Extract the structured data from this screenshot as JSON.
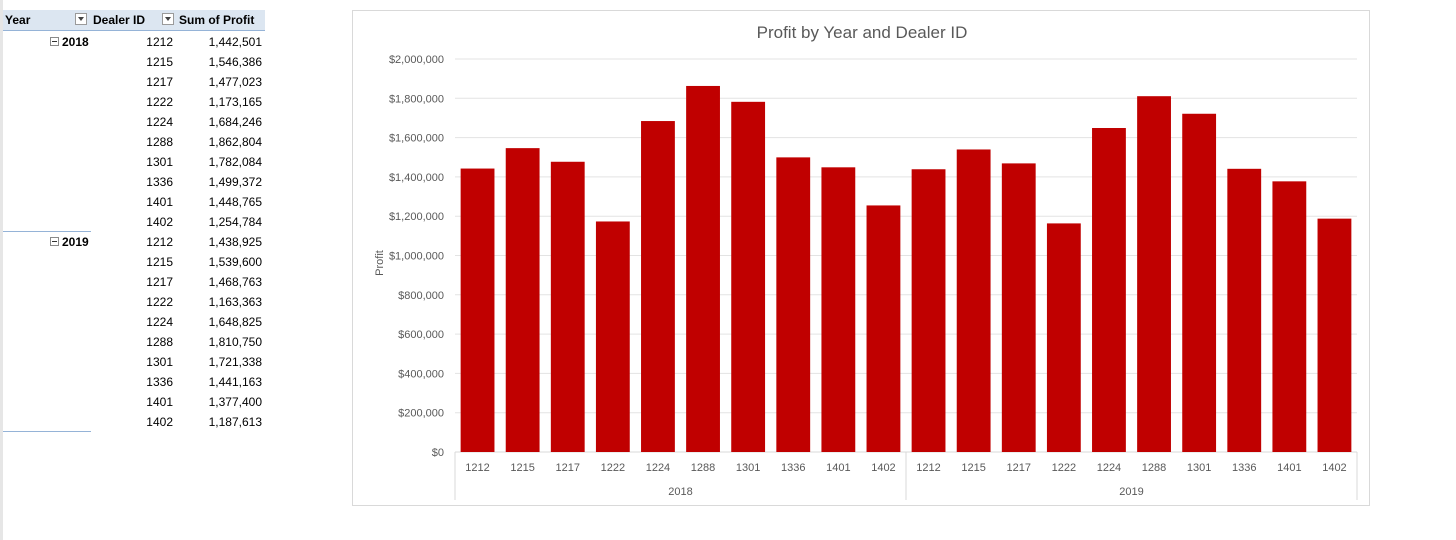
{
  "pivot": {
    "headers": {
      "year": "Year",
      "dealer_id": "Dealer ID",
      "sum_profit": "Sum of Profit"
    },
    "groups": [
      {
        "year": "2018",
        "rows": [
          {
            "dealer": "1212",
            "profit": "1,442,501"
          },
          {
            "dealer": "1215",
            "profit": "1,546,386"
          },
          {
            "dealer": "1217",
            "profit": "1,477,023"
          },
          {
            "dealer": "1222",
            "profit": "1,173,165"
          },
          {
            "dealer": "1224",
            "profit": "1,684,246"
          },
          {
            "dealer": "1288",
            "profit": "1,862,804"
          },
          {
            "dealer": "1301",
            "profit": "1,782,084"
          },
          {
            "dealer": "1336",
            "profit": "1,499,372"
          },
          {
            "dealer": "1401",
            "profit": "1,448,765"
          },
          {
            "dealer": "1402",
            "profit": "1,254,784"
          }
        ]
      },
      {
        "year": "2019",
        "rows": [
          {
            "dealer": "1212",
            "profit": "1,438,925"
          },
          {
            "dealer": "1215",
            "profit": "1,539,600"
          },
          {
            "dealer": "1217",
            "profit": "1,468,763"
          },
          {
            "dealer": "1222",
            "profit": "1,163,363"
          },
          {
            "dealer": "1224",
            "profit": "1,648,825"
          },
          {
            "dealer": "1288",
            "profit": "1,810,750"
          },
          {
            "dealer": "1301",
            "profit": "1,721,338"
          },
          {
            "dealer": "1336",
            "profit": "1,441,163"
          },
          {
            "dealer": "1401",
            "profit": "1,377,400"
          },
          {
            "dealer": "1402",
            "profit": "1,187,613"
          }
        ]
      }
    ]
  },
  "chart_data": {
    "type": "bar",
    "title": "Profit by Year and Dealer ID",
    "xlabel": "",
    "ylabel": "Profit",
    "ylim": [
      0,
      2000000
    ],
    "yticks": [
      "$0",
      "$200,000",
      "$400,000",
      "$600,000",
      "$800,000",
      "$1,000,000",
      "$1,200,000",
      "$1,400,000",
      "$1,600,000",
      "$1,800,000",
      "$2,000,000"
    ],
    "grid": true,
    "legend": "none",
    "bar_color": "#c00000",
    "groups": [
      {
        "name": "2018",
        "categories": [
          "1212",
          "1215",
          "1217",
          "1222",
          "1224",
          "1288",
          "1301",
          "1336",
          "1401",
          "1402"
        ],
        "values": [
          1442501,
          1546386,
          1477023,
          1173165,
          1684246,
          1862804,
          1782084,
          1499372,
          1448765,
          1254784
        ]
      },
      {
        "name": "2019",
        "categories": [
          "1212",
          "1215",
          "1217",
          "1222",
          "1224",
          "1288",
          "1301",
          "1336",
          "1401",
          "1402"
        ],
        "values": [
          1438925,
          1539600,
          1468763,
          1163363,
          1648825,
          1810750,
          1721338,
          1441163,
          1377400,
          1187613
        ]
      }
    ]
  }
}
